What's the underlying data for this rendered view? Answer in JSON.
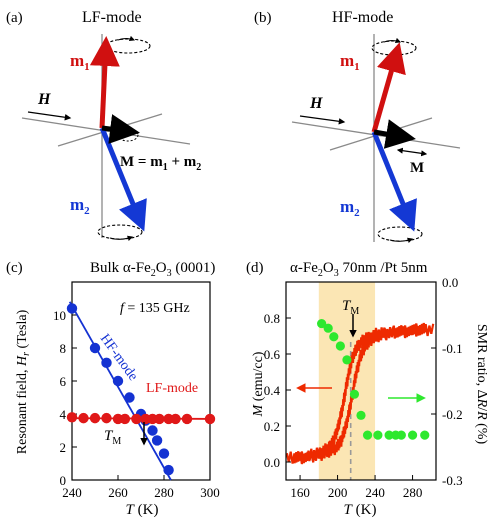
{
  "panels": {
    "a": {
      "label": "(a)",
      "title": "LF-mode",
      "m1": "m",
      "m1_sub": "1",
      "m2": "m",
      "m2_sub": "2",
      "h": "H",
      "eq_M": "M = ",
      "eq_m1": "m",
      "eq_m1_sub": "1",
      "eq_plus": " + ",
      "eq_m2": "m",
      "eq_m2_sub": "2"
    },
    "b": {
      "label": "(b)",
      "title": "HF-mode",
      "m1": "m",
      "m1_sub": "1",
      "m2": "m",
      "m2_sub": "2",
      "h": "H",
      "M": "M"
    },
    "c": {
      "label": "(c)",
      "title_pre": "Bulk α-Fe",
      "title_sub1": "2",
      "title_mid": "O",
      "title_sub2": "3",
      "title_post": " (0001)",
      "freq": "f = 135 GHz",
      "freq_f": "f",
      "freq_rest": " = 135 GHz",
      "ylabel": "Resonant field, H",
      "ylabel_main": "Resonant field, ",
      "ylabel_H": "H",
      "ylabel_sub": "r",
      "ylabel_unit": " (Tesla)",
      "xlabel_T": "T",
      "xlabel_unit": " (K)",
      "hf_label": "HF-mode",
      "lf_label": "LF-mode",
      "tm": "T",
      "tm_sub": "M",
      "colors": {
        "hf": "#1432d2",
        "lf": "#e01818"
      }
    },
    "d": {
      "label": "(d)",
      "title_pre": "α-Fe",
      "title_sub1": "2",
      "title_mid": "O",
      "title_sub2": "3",
      "title_post": " 70nm /Pt 5nm",
      "ylabel_left_M": "M",
      "ylabel_left_unit": " (emu/cc)",
      "ylabel_right": "SMR ratio, ΔR/R (%)",
      "ylabel_right_pre": "SMR ratio, Δ",
      "ylabel_right_R1": "R",
      "ylabel_right_slash": "/",
      "ylabel_right_R2": "R",
      "ylabel_right_unit": " (%)",
      "xlabel_T": "T",
      "xlabel_unit": " (K)",
      "tm": "T",
      "tm_sub": "M",
      "colors": {
        "m": "#ee2a00",
        "smr": "#2ee82e",
        "band": "#fbe6b4",
        "dashed": "#999999"
      }
    }
  },
  "chart_data": [
    {
      "type": "scatter",
      "panel": "c",
      "xlabel": "T (K)",
      "ylabel": "Resonant field, Hr (Tesla)",
      "xlim": [
        240,
        300
      ],
      "ylim": [
        0,
        12
      ],
      "xticks": [
        240,
        260,
        280,
        300
      ],
      "yticks": [
        0,
        2,
        4,
        6,
        8,
        10
      ],
      "series": [
        {
          "name": "HF-mode",
          "color": "#1432d2",
          "points": [
            [
              240,
              10.4
            ],
            [
              250,
              8.0
            ],
            [
              255,
              7.1
            ],
            [
              260,
              6.0
            ],
            [
              265,
              5.0
            ],
            [
              270,
              4.0
            ],
            [
              272,
              3.6
            ],
            [
              275,
              3.0
            ],
            [
              277,
              2.4
            ],
            [
              280,
              1.6
            ],
            [
              282,
              0.6
            ]
          ],
          "fit": [
            [
              239,
              10.8
            ],
            [
              283,
              0
            ]
          ]
        },
        {
          "name": "LF-mode",
          "color": "#e01818",
          "points": [
            [
              240,
              3.8
            ],
            [
              245,
              3.75
            ],
            [
              250,
              3.75
            ],
            [
              255,
              3.75
            ],
            [
              260,
              3.7
            ],
            [
              263,
              3.7
            ],
            [
              268,
              3.7
            ],
            [
              272,
              3.7
            ],
            [
              275,
              3.7
            ],
            [
              278,
              3.7
            ],
            [
              282,
              3.7
            ],
            [
              285,
              3.7
            ],
            [
              290,
              3.7
            ],
            [
              300,
              3.7
            ]
          ],
          "fit": [
            [
              238,
              3.75
            ],
            [
              302,
              3.7
            ]
          ]
        }
      ],
      "annotations": [
        {
          "text": "TM",
          "x": 266
        },
        {
          "text": "f = 135 GHz"
        }
      ]
    },
    {
      "type": "line",
      "panel": "d",
      "xlabel": "T (K)",
      "ylabel": "M (emu/cc)",
      "y2label": "SMR ratio, ΔR/R (%)",
      "xlim": [
        145,
        305
      ],
      "ylim": [
        -0.1,
        1.0
      ],
      "y2lim": [
        -0.3,
        0.0
      ],
      "xticks": [
        160,
        200,
        240,
        280
      ],
      "yticks": [
        0.0,
        0.2,
        0.4,
        0.6,
        0.8
      ],
      "y2ticks": [
        0.0,
        -0.1,
        -0.2,
        -0.3
      ],
      "highlight_band": [
        180,
        240
      ],
      "tm_x": 214,
      "series": [
        {
          "name": "M (heating/cooling)",
          "color": "#ee2a00",
          "axis": "left",
          "points": [
            [
              150,
              0.02
            ],
            [
              170,
              0.03
            ],
            [
              185,
              0.05
            ],
            [
              195,
              0.08
            ],
            [
              200,
              0.12
            ],
            [
              205,
              0.2
            ],
            [
              210,
              0.32
            ],
            [
              215,
              0.47
            ],
            [
              220,
              0.58
            ],
            [
              225,
              0.64
            ],
            [
              232,
              0.68
            ],
            [
              245,
              0.71
            ],
            [
              260,
              0.72
            ],
            [
              280,
              0.73
            ],
            [
              300,
              0.74
            ]
          ]
        },
        {
          "name": "SMR ratio",
          "color": "#2ee82e",
          "axis": "right",
          "points": [
            [
              183,
              -0.063
            ],
            [
              190,
              -0.07
            ],
            [
              196,
              -0.083
            ],
            [
              203,
              -0.097
            ],
            [
              210,
              -0.118
            ],
            [
              218,
              -0.17
            ],
            [
              225,
              -0.202
            ],
            [
              232,
              -0.232
            ],
            [
              243,
              -0.232
            ],
            [
              255,
              -0.232
            ],
            [
              262,
              -0.232
            ],
            [
              268,
              -0.232
            ],
            [
              280,
              -0.232
            ],
            [
              293,
              -0.232
            ]
          ]
        }
      ],
      "annotations": [
        {
          "text": "TM",
          "x": 214
        }
      ]
    }
  ]
}
